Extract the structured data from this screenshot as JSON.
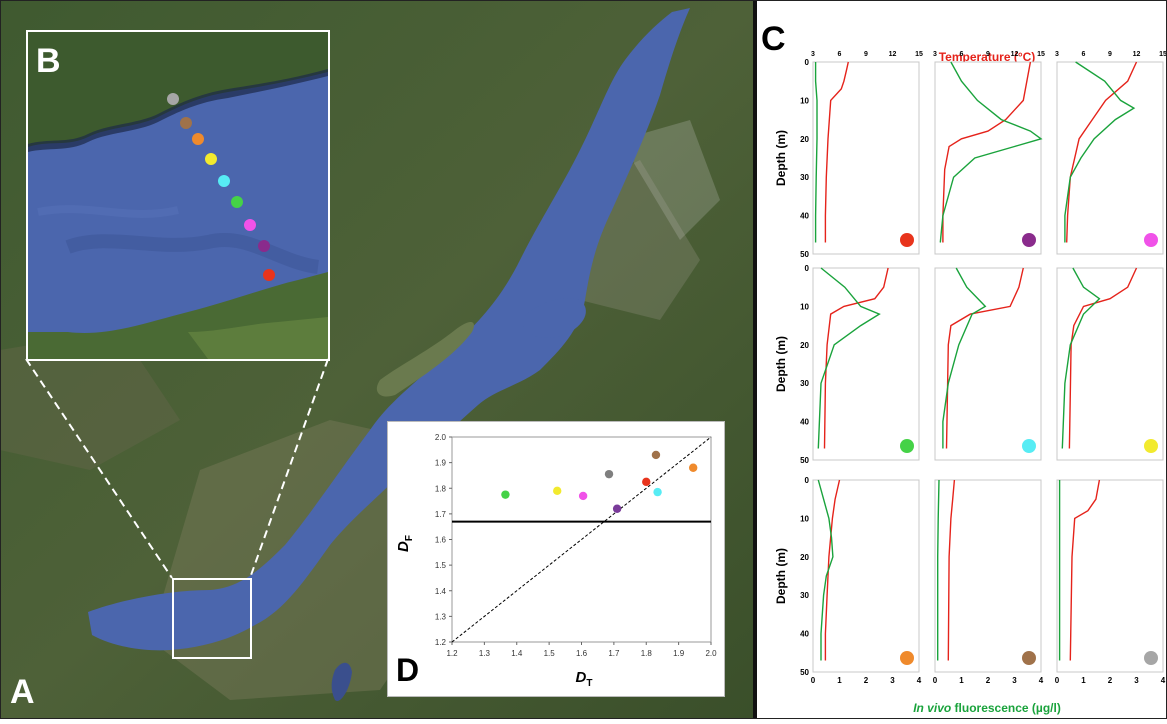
{
  "panels": {
    "a_label": "A",
    "b_label": "B",
    "c_label": "C",
    "d_label": "D"
  },
  "colors": {
    "lake": "#4b66ad",
    "temperature": "#e5231b",
    "fluorescence": "#1aa33c"
  },
  "inset_b": {
    "station_colors": [
      "#a6a6a6",
      "#a0724a",
      "#ef8a2c",
      "#f2ea2e",
      "#57ecf4",
      "#45d247",
      "#f052e8",
      "#8a2b8c",
      "#e8341c"
    ]
  },
  "panel_c": {
    "top_axis_title": "Temperature (°C)",
    "bottom_axis_title_italic": "In vivo",
    "bottom_axis_title_rest": " fluorescence (µg/l)",
    "temp_ticks": [
      "3",
      "6",
      "9",
      "12",
      "15"
    ],
    "fluor_ticks": [
      "0",
      "1",
      "2",
      "3",
      "4"
    ],
    "depth_ticks": [
      "0",
      "10",
      "20",
      "30",
      "40",
      "50"
    ],
    "ylabel": "Depth (m)",
    "profiles": [
      {
        "color": "#e8341c",
        "temp": [
          [
            0,
            7.0
          ],
          [
            2,
            6.8
          ],
          [
            5,
            6.5
          ],
          [
            7,
            6.2
          ],
          [
            10,
            5.0
          ],
          [
            20,
            4.7
          ],
          [
            30,
            4.5
          ],
          [
            40,
            4.4
          ],
          [
            47,
            4.4
          ]
        ],
        "fluor": [
          [
            0,
            0.1
          ],
          [
            5,
            0.1
          ],
          [
            10,
            0.15
          ],
          [
            20,
            0.15
          ],
          [
            30,
            0.12
          ],
          [
            40,
            0.1
          ],
          [
            47,
            0.1
          ]
        ]
      },
      {
        "color": "#8a2b8c",
        "temp": [
          [
            0,
            13.8
          ],
          [
            10,
            13.0
          ],
          [
            15,
            11.0
          ],
          [
            18,
            9.0
          ],
          [
            20,
            6.0
          ],
          [
            22,
            4.6
          ],
          [
            28,
            4.1
          ],
          [
            40,
            3.9
          ],
          [
            47,
            3.9
          ]
        ],
        "fluor": [
          [
            0,
            0.6
          ],
          [
            5,
            1.0
          ],
          [
            10,
            1.6
          ],
          [
            15,
            2.5
          ],
          [
            18,
            3.6
          ],
          [
            20,
            4.0
          ],
          [
            22,
            3.0
          ],
          [
            25,
            1.5
          ],
          [
            30,
            0.7
          ],
          [
            40,
            0.3
          ],
          [
            47,
            0.2
          ]
        ]
      },
      {
        "color": "#f052e8",
        "temp": [
          [
            0,
            12.0
          ],
          [
            5,
            11.0
          ],
          [
            10,
            8.5
          ],
          [
            15,
            7.0
          ],
          [
            20,
            5.5
          ],
          [
            30,
            4.5
          ],
          [
            40,
            4.2
          ],
          [
            47,
            4.1
          ]
        ],
        "fluor": [
          [
            0,
            0.7
          ],
          [
            5,
            1.8
          ],
          [
            10,
            2.4
          ],
          [
            12,
            2.9
          ],
          [
            15,
            2.2
          ],
          [
            20,
            1.4
          ],
          [
            25,
            0.9
          ],
          [
            30,
            0.5
          ],
          [
            40,
            0.3
          ],
          [
            47,
            0.3
          ]
        ]
      },
      {
        "color": "#45d247",
        "temp": [
          [
            0,
            11.5
          ],
          [
            5,
            11.0
          ],
          [
            8,
            10.0
          ],
          [
            10,
            6.5
          ],
          [
            12,
            5.0
          ],
          [
            20,
            4.6
          ],
          [
            30,
            4.4
          ],
          [
            47,
            4.3
          ]
        ],
        "fluor": [
          [
            0,
            0.3
          ],
          [
            5,
            1.2
          ],
          [
            10,
            1.8
          ],
          [
            12,
            2.5
          ],
          [
            15,
            1.8
          ],
          [
            20,
            0.8
          ],
          [
            30,
            0.3
          ],
          [
            47,
            0.2
          ]
        ]
      },
      {
        "color": "#57ecf4",
        "temp": [
          [
            0,
            13.0
          ],
          [
            5,
            12.5
          ],
          [
            10,
            11.5
          ],
          [
            12,
            7.0
          ],
          [
            15,
            4.8
          ],
          [
            20,
            4.5
          ],
          [
            47,
            4.3
          ]
        ],
        "fluor": [
          [
            0,
            0.8
          ],
          [
            5,
            1.2
          ],
          [
            10,
            1.9
          ],
          [
            12,
            1.4
          ],
          [
            20,
            0.9
          ],
          [
            30,
            0.5
          ],
          [
            40,
            0.3
          ],
          [
            47,
            0.3
          ]
        ]
      },
      {
        "color": "#f2ea2e",
        "temp": [
          [
            0,
            12.0
          ],
          [
            5,
            11.0
          ],
          [
            8,
            9.0
          ],
          [
            10,
            6.0
          ],
          [
            15,
            4.9
          ],
          [
            20,
            4.6
          ],
          [
            47,
            4.4
          ]
        ],
        "fluor": [
          [
            0,
            0.6
          ],
          [
            5,
            1.0
          ],
          [
            8,
            1.6
          ],
          [
            12,
            1.0
          ],
          [
            20,
            0.5
          ],
          [
            30,
            0.3
          ],
          [
            47,
            0.2
          ]
        ]
      },
      {
        "color": "#ef8a2c",
        "temp": [
          [
            0,
            6.0
          ],
          [
            5,
            5.5
          ],
          [
            10,
            5.2
          ],
          [
            20,
            4.8
          ],
          [
            30,
            4.6
          ],
          [
            40,
            4.4
          ],
          [
            47,
            4.4
          ]
        ],
        "fluor": [
          [
            0,
            0.2
          ],
          [
            5,
            0.4
          ],
          [
            10,
            0.6
          ],
          [
            15,
            0.7
          ],
          [
            20,
            0.75
          ],
          [
            25,
            0.5
          ],
          [
            30,
            0.4
          ],
          [
            40,
            0.3
          ],
          [
            47,
            0.3
          ]
        ]
      },
      {
        "color": "#a0724a",
        "temp": [
          [
            0,
            5.2
          ],
          [
            5,
            5.0
          ],
          [
            10,
            4.8
          ],
          [
            20,
            4.6
          ],
          [
            47,
            4.5
          ]
        ],
        "fluor": [
          [
            0,
            0.15
          ],
          [
            10,
            0.12
          ],
          [
            20,
            0.1
          ],
          [
            47,
            0.1
          ]
        ]
      },
      {
        "color": "#a6a6a6",
        "temp": [
          [
            0,
            7.8
          ],
          [
            5,
            7.4
          ],
          [
            8,
            6.5
          ],
          [
            10,
            5.0
          ],
          [
            20,
            4.7
          ],
          [
            47,
            4.5
          ]
        ],
        "fluor": [
          [
            0,
            0.1
          ],
          [
            10,
            0.1
          ],
          [
            20,
            0.1
          ],
          [
            47,
            0.1
          ]
        ]
      }
    ]
  },
  "chart_data": {
    "type": "scatter",
    "xlabel_main": "D",
    "xlabel_sub": "T",
    "ylabel_main": "D",
    "ylabel_sub": "F",
    "xlim": [
      1.2,
      2.0
    ],
    "ylim": [
      1.2,
      2.0
    ],
    "xticks": [
      "1.2",
      "1.3",
      "1.4",
      "1.5",
      "1.6",
      "1.7",
      "1.8",
      "1.9",
      "2.0"
    ],
    "yticks": [
      "1.2",
      "1.3",
      "1.4",
      "1.5",
      "1.6",
      "1.7",
      "1.8",
      "1.9",
      "2.0"
    ],
    "reference_line_y": 1.67,
    "points": [
      {
        "x": 1.365,
        "y": 1.775,
        "color": "#45d247"
      },
      {
        "x": 1.525,
        "y": 1.79,
        "color": "#f2ea2e"
      },
      {
        "x": 1.605,
        "y": 1.77,
        "color": "#f052e8"
      },
      {
        "x": 1.685,
        "y": 1.855,
        "color": "#7f7f7f"
      },
      {
        "x": 1.71,
        "y": 1.72,
        "color": "#7a3b9a"
      },
      {
        "x": 1.8,
        "y": 1.825,
        "color": "#e8341c"
      },
      {
        "x": 1.83,
        "y": 1.93,
        "color": "#a0724a"
      },
      {
        "x": 1.835,
        "y": 1.785,
        "color": "#57ecf4"
      },
      {
        "x": 1.945,
        "y": 1.88,
        "color": "#ef8a2c"
      }
    ]
  }
}
